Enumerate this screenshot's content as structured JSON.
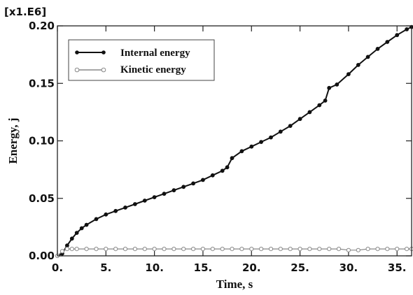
{
  "chart_data": {
    "type": "line",
    "title": "",
    "multiplier_label": "[x1.E6]",
    "xlabel": "Time, s",
    "ylabel": "Energy, j",
    "xlim": [
      0,
      36.5
    ],
    "ylim": [
      0,
      0.2
    ],
    "x_ticks": [
      0,
      5,
      10,
      15,
      20,
      25,
      30,
      35
    ],
    "x_tick_labels": [
      "0.",
      "5.",
      "10.",
      "15.",
      "20.",
      "25.",
      "30.",
      "35."
    ],
    "y_ticks": [
      0,
      0.05,
      0.1,
      0.15,
      0.2
    ],
    "y_tick_labels": [
      "0.00",
      "0.05",
      "0.10",
      "0.15",
      "0.20"
    ],
    "grid": false,
    "legend_position": "top-left",
    "series": [
      {
        "name": "Internal energy",
        "color": "#111111",
        "marker": "filled-circle",
        "x": [
          0,
          0.5,
          1.0,
          1.5,
          2.0,
          2.5,
          3.0,
          4.0,
          5.0,
          6.0,
          7.0,
          8.0,
          9.0,
          10.0,
          11.0,
          12.0,
          13.0,
          14.0,
          15.0,
          16.0,
          17.0,
          17.5,
          18.0,
          19.0,
          20.0,
          21.0,
          22.0,
          23.0,
          24.0,
          25.0,
          26.0,
          27.0,
          27.6,
          28.0,
          28.8,
          30.0,
          31.0,
          32.0,
          33.0,
          34.0,
          35.0,
          36.0,
          36.5
        ],
        "values": [
          0,
          0.002,
          0.009,
          0.015,
          0.02,
          0.024,
          0.027,
          0.032,
          0.036,
          0.039,
          0.042,
          0.045,
          0.048,
          0.051,
          0.054,
          0.057,
          0.06,
          0.063,
          0.066,
          0.07,
          0.074,
          0.077,
          0.085,
          0.091,
          0.095,
          0.099,
          0.103,
          0.108,
          0.113,
          0.119,
          0.125,
          0.131,
          0.135,
          0.146,
          0.149,
          0.158,
          0.166,
          0.173,
          0.18,
          0.186,
          0.192,
          0.197,
          0.199
        ]
      },
      {
        "name": "Kinetic energy",
        "color": "#888888",
        "marker": "open-circle",
        "x": [
          0,
          0.5,
          1.0,
          1.5,
          2.0,
          3.0,
          4.0,
          5.0,
          6.0,
          7.0,
          8.0,
          9.0,
          10.0,
          11.0,
          12.0,
          13.0,
          14.0,
          15.0,
          16.0,
          17.0,
          18.0,
          19.0,
          20.0,
          21.0,
          22.0,
          23.0,
          24.0,
          25.0,
          26.0,
          27.0,
          28.0,
          29.0,
          30.0,
          31.0,
          32.0,
          33.0,
          34.0,
          35.0,
          36.0,
          36.5
        ],
        "values": [
          0,
          0.004,
          0.006,
          0.006,
          0.006,
          0.006,
          0.006,
          0.006,
          0.006,
          0.006,
          0.006,
          0.006,
          0.006,
          0.006,
          0.006,
          0.006,
          0.006,
          0.006,
          0.006,
          0.006,
          0.006,
          0.006,
          0.006,
          0.006,
          0.006,
          0.006,
          0.006,
          0.006,
          0.006,
          0.006,
          0.006,
          0.006,
          0.005,
          0.005,
          0.006,
          0.006,
          0.006,
          0.006,
          0.006,
          0.006
        ]
      }
    ]
  }
}
